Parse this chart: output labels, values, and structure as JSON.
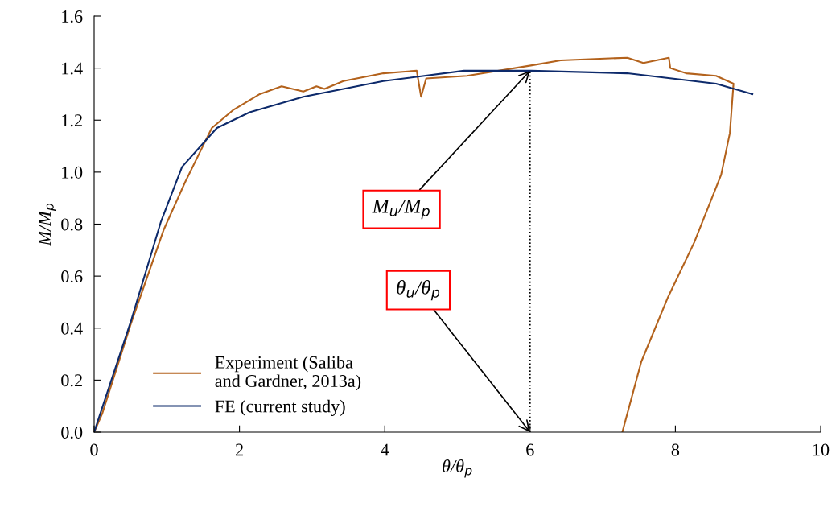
{
  "chart_data": {
    "type": "line",
    "xlabel": "θ/θ$_{p}$",
    "ylabel": "M/M$_{p}$",
    "xlim": [
      0,
      10
    ],
    "ylim": [
      0,
      1.6
    ],
    "xticks": [
      0,
      2,
      4,
      6,
      8,
      10
    ],
    "yticks": [
      {
        "value": 0,
        "label": "0.0"
      },
      {
        "value": 0.2,
        "label": "0.2"
      },
      {
        "value": 0.4,
        "label": "0.4"
      },
      {
        "value": 0.6,
        "label": "0.6"
      },
      {
        "value": 0.8,
        "label": "0.8"
      },
      {
        "value": 1.0,
        "label": "1.0"
      },
      {
        "value": 1.2,
        "label": "1.2"
      },
      {
        "value": 1.4,
        "label": "1.4"
      },
      {
        "value": 1.6,
        "label": "1.6"
      }
    ],
    "grid": false,
    "legend": "bottom left",
    "marker": "none",
    "line_style": "solid",
    "series": [
      {
        "name": "Experiment (Saliba\nand Gardner, 2013a)",
        "color": "#b3621c",
        "x": [
          0,
          0.11,
          0.51,
          0.96,
          1.25,
          1.62,
          1.92,
          2.28,
          2.58,
          2.88,
          3.06,
          3.17,
          3.43,
          3.98,
          4.44,
          4.5,
          4.57,
          5.13,
          6.01,
          6.42,
          7.34,
          7.56,
          7.91,
          7.93,
          8.15,
          8.56,
          8.8,
          8.75,
          8.63,
          8.26,
          7.9,
          7.53,
          7.27
        ],
        "values": [
          0,
          0.07,
          0.42,
          0.78,
          0.96,
          1.17,
          1.24,
          1.3,
          1.33,
          1.31,
          1.33,
          1.32,
          1.35,
          1.38,
          1.39,
          1.29,
          1.36,
          1.37,
          1.41,
          1.43,
          1.44,
          1.42,
          1.44,
          1.4,
          1.38,
          1.37,
          1.34,
          1.15,
          0.99,
          0.73,
          0.52,
          0.27,
          0
        ]
      },
      {
        "name": "FE (current study)",
        "color": "#0d2a6b",
        "x": [
          0,
          0.51,
          0.92,
          1.21,
          1.69,
          2.14,
          2.88,
          3.98,
          5.09,
          6.01,
          7.34,
          8.56,
          9.06
        ],
        "values": [
          0,
          0.43,
          0.81,
          1.02,
          1.17,
          1.23,
          1.29,
          1.35,
          1.39,
          1.39,
          1.38,
          1.34,
          1.3
        ]
      }
    ],
    "ref_lines": [
      {
        "axis": "x",
        "value": 6,
        "line_style": "dotted",
        "color": "#000000"
      }
    ],
    "annotations": [
      {
        "text": "M$_{u}$/M$_{p}$",
        "x": 6,
        "y": 1.39
      },
      {
        "text": "θ$_{u}$/θ$_{p}$",
        "x": 6,
        "y": 0
      }
    ]
  }
}
